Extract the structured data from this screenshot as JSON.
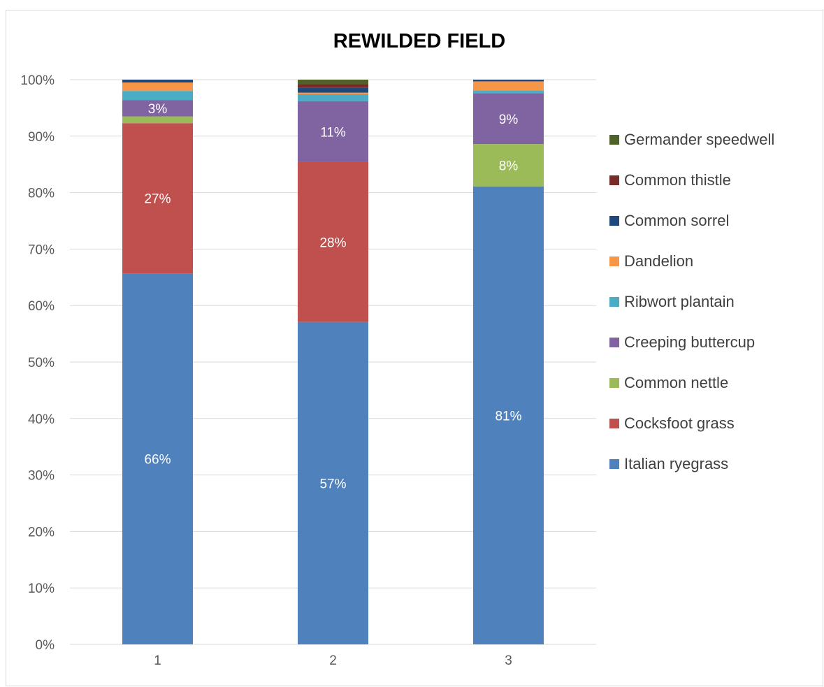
{
  "chart_data": {
    "type": "bar",
    "stacked": true,
    "percent": true,
    "title": "REWILDED FIELD",
    "xlabel": "",
    "ylabel": "",
    "categories": [
      "1",
      "2",
      "3"
    ],
    "y_ticks": [
      "0%",
      "10%",
      "20%",
      "30%",
      "40%",
      "50%",
      "60%",
      "70%",
      "80%",
      "90%",
      "100%"
    ],
    "ylim": [
      0,
      100
    ],
    "grid": true,
    "legend_position": "right",
    "series": [
      {
        "name": "Italian ryegrass",
        "color": "#4F81BD",
        "values": [
          65.7,
          57.1,
          81.1
        ],
        "labels": [
          "66%",
          "57%",
          "81%"
        ]
      },
      {
        "name": "Cocksfoot grass",
        "color": "#C0504D",
        "values": [
          26.6,
          28.3,
          0
        ],
        "labels": [
          "27%",
          "28%",
          ""
        ]
      },
      {
        "name": "Common nettle",
        "color": "#9BBB59",
        "values": [
          1.2,
          0,
          7.5
        ],
        "labels": [
          "",
          "",
          "8%"
        ]
      },
      {
        "name": "Creeping buttercup",
        "color": "#8064A2",
        "values": [
          2.9,
          10.8,
          9.0
        ],
        "labels": [
          "3%",
          "11%",
          "9%"
        ]
      },
      {
        "name": "Ribwort plantain",
        "color": "#4BACC6",
        "values": [
          1.6,
          1.2,
          0.5
        ],
        "labels": [
          "",
          "",
          ""
        ]
      },
      {
        "name": "Dandelion",
        "color": "#F79646",
        "values": [
          1.5,
          0.3,
          1.6
        ],
        "labels": [
          "",
          "",
          ""
        ]
      },
      {
        "name": "Common sorrel",
        "color": "#1F497D",
        "values": [
          0.5,
          0.9,
          0.3
        ],
        "labels": [
          "",
          "",
          ""
        ]
      },
      {
        "name": "Common thistle",
        "color": "#772C2A",
        "values": [
          0,
          0.6,
          0
        ],
        "labels": [
          "",
          "",
          ""
        ]
      },
      {
        "name": "Germander speedwell",
        "color": "#4F6228",
        "values": [
          0,
          0.8,
          0
        ],
        "labels": [
          "",
          "",
          ""
        ]
      }
    ]
  }
}
